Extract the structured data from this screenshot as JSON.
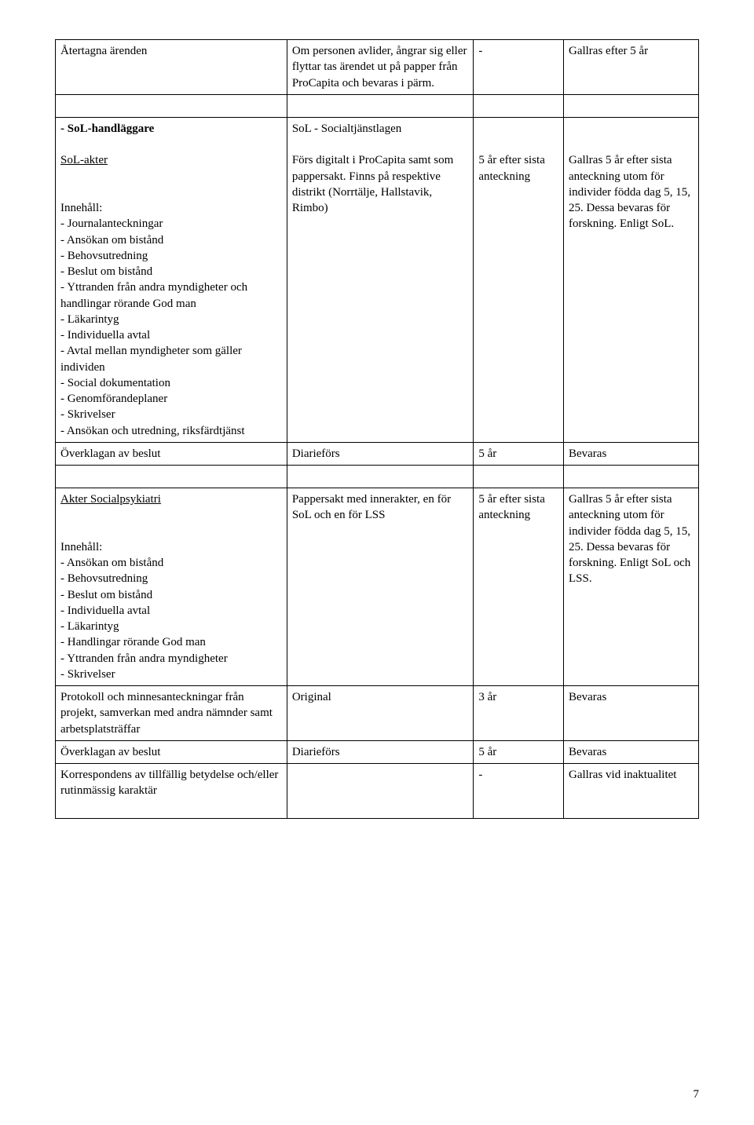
{
  "page_number": "7",
  "rows": {
    "r1": {
      "c1": "Återtagna  ärenden",
      "c2a": "Om personen avlider, ångrar sig eller flyttar tas ärendet ut på papper från ProCapita och bevaras i pärm.",
      "c3": "-",
      "c4": "Gallras efter 5 år"
    },
    "r2": {
      "c1_title": "- SoL-handläggare",
      "c1_sub": "SoL-akter",
      "c1_hdr": "Innehåll:",
      "c1_items": [
        "- Journalanteckningar",
        "- Ansökan om bistånd",
        "- Behovsutredning",
        "- Beslut om bistånd",
        "- Yttranden från andra myndigheter och handlingar rörande God man",
        "- Läkarintyg",
        "- Individuella avtal",
        "- Avtal mellan myndigheter som gäller individen",
        "- Social dokumentation",
        "- Genomförandeplaner",
        "- Skrivelser",
        "- Ansökan och utredning, riksfärdtjänst"
      ],
      "c2_top": "SoL - Socialtjänstlagen",
      "c2_body": "Förs digitalt i ProCapita samt som pappersakt. Finns på respektive distrikt (Norrtälje, Hallstavik, Rimbo)",
      "c3": "5 år efter sista anteckning",
      "c4": "Gallras 5 år efter sista anteckning utom för individer födda dag 5, 15, 25. Dessa bevaras för forskning. Enligt SoL."
    },
    "r3": {
      "c1": "Överklagan av beslut",
      "c2": "Diarieförs",
      "c3": "5 år",
      "c4": "Bevaras"
    },
    "r4": {
      "c1_title": "Akter Socialpsykiatri",
      "c1_hdr": "Innehåll:",
      "c1_items": [
        "- Ansökan om bistånd",
        "- Behovsutredning",
        "- Beslut om bistånd",
        "- Individuella avtal",
        "- Läkarintyg",
        "- Handlingar rörande God man",
        "- Yttranden från andra myndigheter",
        "- Skrivelser"
      ],
      "c2": "Pappersakt med innerakter, en för SoL och en för LSS",
      "c3": "5 år efter sista anteckning",
      "c4": "Gallras 5 år efter sista anteckning utom för individer födda dag 5, 15, 25. Dessa bevaras för forskning. Enligt SoL och LSS."
    },
    "r5": {
      "c1": "Protokoll och minnesanteckningar från projekt, samverkan med andra nämnder samt arbetsplatsträffar",
      "c2": "Original",
      "c3": "3 år",
      "c4": "Bevaras"
    },
    "r6": {
      "c1": "Överklagan av beslut",
      "c2": "Diarieförs",
      "c3": "5 år",
      "c4": "Bevaras"
    },
    "r7": {
      "c1": "Korrespondens av tillfällig betydelse och/eller rutinmässig karaktär",
      "c2": "",
      "c3": "-",
      "c4": "Gallras vid inaktualitet"
    }
  }
}
